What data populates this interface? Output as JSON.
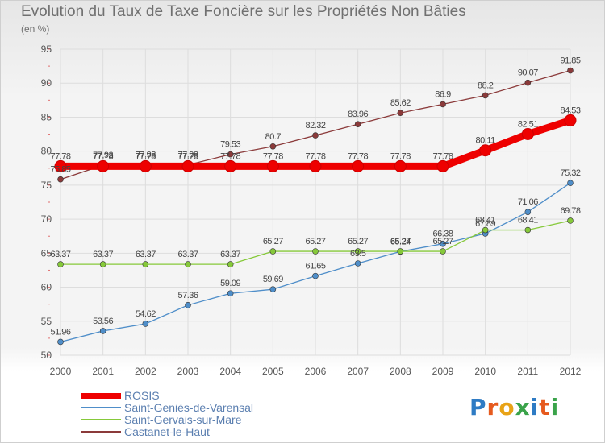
{
  "chart_data": {
    "type": "line",
    "title": "Evolution du Taux de Taxe Foncière sur les Propriétés Non Bâties",
    "subtitle": "(en %)",
    "x": [
      "2000",
      "2001",
      "2002",
      "2003",
      "2004",
      "2005",
      "2006",
      "2007",
      "2008",
      "2009",
      "2010",
      "2011",
      "2012"
    ],
    "ylim": [
      50,
      95
    ],
    "yticks": [
      50,
      55,
      60,
      65,
      70,
      75,
      80,
      85,
      90,
      95
    ],
    "grid": true,
    "legend_position": "bottom-left",
    "series": [
      {
        "name": "Castanet-le-Haut",
        "color": "#8b3a3a",
        "values": [
          75.85,
          77.93,
          77.98,
          77.98,
          79.53,
          80.7,
          82.32,
          83.96,
          85.62,
          86.9,
          88.2,
          90.07,
          91.85
        ],
        "labels": [
          "75.85",
          "77.93",
          "77.98",
          "77.98",
          "79.53",
          "80.7",
          "82.32",
          "83.96",
          "85.62",
          "86.9",
          "88.2",
          "90.07",
          "91.85"
        ]
      },
      {
        "name": "Saint-Geniès-de-Varensal",
        "color": "#4f8ec9",
        "values": [
          51.96,
          53.56,
          54.62,
          57.36,
          59.09,
          59.69,
          61.65,
          63.5,
          65.24,
          66.38,
          67.89,
          71.06,
          75.32
        ],
        "labels": [
          "51.96",
          "53.56",
          "54.62",
          "57.36",
          "59.09",
          "59.69",
          "61.65",
          "63.5",
          "65.24",
          "66.38",
          "67.89",
          "71.06",
          "75.32"
        ]
      },
      {
        "name": "Saint-Gervais-sur-Mare",
        "color": "#86c93a",
        "values": [
          63.37,
          63.37,
          63.37,
          63.37,
          63.37,
          65.27,
          65.27,
          65.27,
          65.27,
          65.27,
          68.41,
          68.41,
          69.78
        ],
        "labels": [
          "63.37",
          "63.37",
          "63.37",
          "63.37",
          "63.37",
          "65.27",
          "65.27",
          "65.27",
          "65.27",
          "65.27",
          "68.41",
          "68.41",
          "69.78"
        ]
      },
      {
        "name": "ROSIS",
        "color": "#ee0000",
        "values": [
          77.78,
          77.78,
          77.78,
          77.78,
          77.78,
          77.78,
          77.78,
          77.78,
          77.78,
          77.78,
          80.11,
          82.51,
          84.53
        ],
        "labels": [
          "77.78",
          "77.78",
          "77.78",
          "77.78",
          "77.78",
          "77.78",
          "77.78",
          "77.78",
          "77.78",
          "77.78",
          "80.11",
          "82.51",
          "84.53"
        ]
      }
    ]
  },
  "legend": {
    "items": [
      {
        "label": "ROSIS",
        "color": "#ee0000"
      },
      {
        "label": "Saint-Geniès-de-Varensal",
        "color": "#4f8ec9"
      },
      {
        "label": "Saint-Gervais-sur-Mare",
        "color": "#86c93a"
      },
      {
        "label": "Castanet-le-Haut",
        "color": "#8b3a3a"
      }
    ]
  },
  "logo": {
    "text": "Proxiti",
    "letter_colors": [
      "#2e7bc4",
      "#e65a1e",
      "#e8a317",
      "#3aa34a",
      "#2e7bc4",
      "#e65a1e",
      "#3aa34a"
    ]
  }
}
